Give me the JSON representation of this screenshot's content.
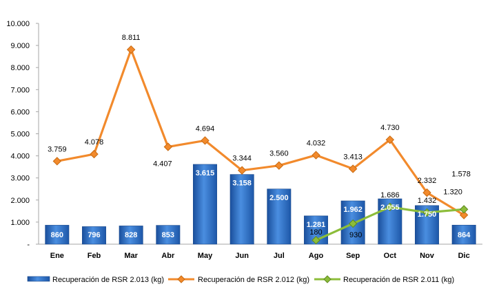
{
  "chart_data": {
    "type": "bar",
    "categories": [
      "Ene",
      "Feb",
      "Mar",
      "Abr",
      "May",
      "Jun",
      "Jul",
      "Ago",
      "Sep",
      "Oct",
      "Nov",
      "Dic"
    ],
    "ylim": [
      0,
      10000
    ],
    "y_ticks": [
      "-",
      "1.000",
      "2.000",
      "3.000",
      "4.000",
      "5.000",
      "6.000",
      "7.000",
      "8.000",
      "9.000",
      "10.000"
    ],
    "grid": false,
    "legend_position": "bottom",
    "series": [
      {
        "name": "Recuperación de RSR 2.013 (kg)",
        "type": "bar",
        "color": "#2e6fc6",
        "values": [
          860,
          796,
          828,
          853,
          3615,
          3158,
          2500,
          1281,
          1962,
          2055,
          1750,
          864
        ],
        "labels": [
          "860",
          "796",
          "828",
          "853",
          "3.615",
          "3.158",
          "2.500",
          "1.281",
          "1.962",
          "2.055",
          "1.750",
          "864"
        ]
      },
      {
        "name": "Recuperación de RSR 2.012 (kg)",
        "type": "line",
        "color": "#f28a2c",
        "values": [
          3759,
          4078,
          8811,
          4407,
          4694,
          3344,
          3560,
          4032,
          3413,
          4730,
          2332,
          1320
        ],
        "labels": [
          "3.759",
          "4.078",
          "8.811",
          "4.407",
          "4.694",
          "3.344",
          "3.560",
          "4.032",
          "3.413",
          "4.730",
          "2.332",
          "1.320"
        ]
      },
      {
        "name": "Recuperación de RSR 2.011 (kg)",
        "type": "line",
        "color": "#8cbd3a",
        "values": [
          null,
          null,
          null,
          null,
          null,
          null,
          null,
          180,
          930,
          1686,
          1432,
          1578
        ],
        "labels": [
          null,
          null,
          null,
          null,
          null,
          null,
          null,
          "180",
          "930",
          "1.686",
          "1.432",
          "1.578"
        ]
      }
    ]
  }
}
